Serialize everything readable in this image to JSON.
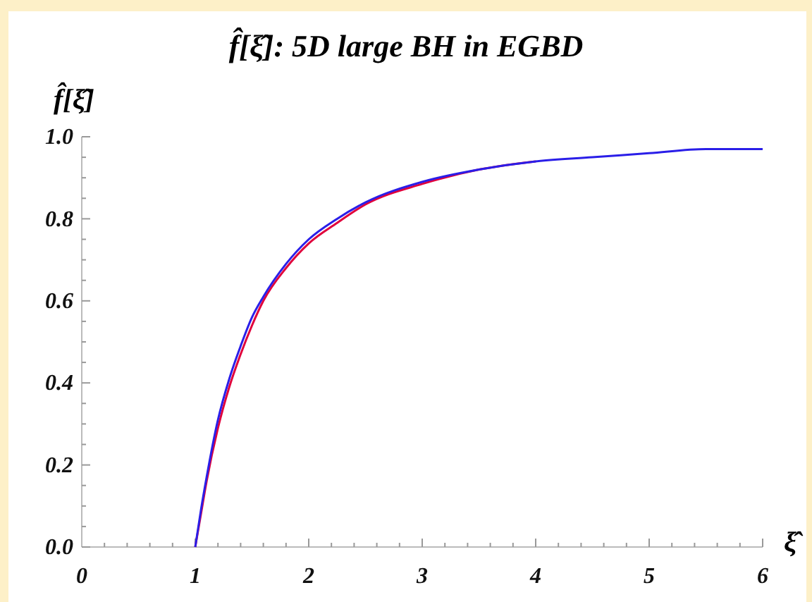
{
  "chart_data": {
    "type": "line",
    "title": "f̂[ξ̂]: 5D large BH in EGBD",
    "xlabel": "ξ̂",
    "ylabel": "f̂[ξ̂]",
    "xlim": [
      0,
      6
    ],
    "ylim": [
      0,
      1
    ],
    "xticks": [
      0,
      {
        "value": 0.2,
        "label": null
      },
      {
        "value": 0.4,
        "label": null
      },
      {
        "value": 0.6,
        "label": null
      },
      {
        "value": 0.8,
        "label": null
      },
      1,
      {
        "value": 1.2,
        "label": null
      },
      {
        "value": 1.4,
        "label": null
      },
      {
        "value": 1.6,
        "label": null
      },
      {
        "value": 1.8,
        "label": null
      },
      2,
      {
        "value": 2.2,
        "label": null
      },
      {
        "value": 2.4,
        "label": null
      },
      {
        "value": 2.6,
        "label": null
      },
      {
        "value": 2.8,
        "label": null
      },
      3,
      {
        "value": 3.2,
        "label": null
      },
      {
        "value": 3.4,
        "label": null
      },
      {
        "value": 3.6,
        "label": null
      },
      {
        "value": 3.8,
        "label": null
      },
      4,
      {
        "value": 4.2,
        "label": null
      },
      {
        "value": 4.4,
        "label": null
      },
      {
        "value": 4.6,
        "label": null
      },
      {
        "value": 4.8,
        "label": null
      },
      5,
      {
        "value": 5.2,
        "label": null
      },
      {
        "value": 5.4,
        "label": null
      },
      {
        "value": 5.6,
        "label": null
      },
      {
        "value": 5.8,
        "label": null
      },
      6
    ],
    "yticks": [
      {
        "value": 0,
        "label": "0.0"
      },
      {
        "value": 0.05,
        "label": null
      },
      {
        "value": 0.1,
        "label": null
      },
      {
        "value": 0.15,
        "label": null
      },
      0.2,
      {
        "value": 0.25,
        "label": null
      },
      {
        "value": 0.3,
        "label": null
      },
      {
        "value": 0.35,
        "label": null
      },
      0.4,
      {
        "value": 0.45,
        "label": null
      },
      {
        "value": 0.5,
        "label": null
      },
      {
        "value": 0.55,
        "label": null
      },
      0.6,
      {
        "value": 0.65,
        "label": null
      },
      {
        "value": 0.7,
        "label": null
      },
      {
        "value": 0.75,
        "label": null
      },
      0.8,
      {
        "value": 0.85,
        "label": null
      },
      {
        "value": 0.9,
        "label": null
      },
      {
        "value": 0.95,
        "label": null
      },
      {
        "value": 1,
        "label": "1.0"
      }
    ],
    "grid": false,
    "x": [
      1,
      1.05,
      1.1,
      1.2,
      1.3,
      1.4,
      1.5,
      1.6,
      1.8,
      2,
      2.25,
      2.5,
      3,
      3.5,
      4,
      4.5,
      5,
      5.5,
      6
    ],
    "series": [
      {
        "color": "#e0003c",
        "values": [
          0,
          0.08,
          0.16,
          0.29,
          0.39,
          0.47,
          0.54,
          0.6,
          0.68,
          0.74,
          0.79,
          0.835,
          0.885,
          0.92,
          0.94,
          null,
          null,
          null,
          null
        ]
      },
      {
        "color": "#2a1ee8",
        "values": [
          0,
          0.09,
          0.17,
          0.31,
          0.41,
          0.49,
          0.56,
          0.61,
          0.69,
          0.75,
          0.8,
          0.84,
          0.89,
          0.92,
          0.94,
          0.95,
          0.96,
          0.97,
          0.97
        ]
      }
    ]
  }
}
